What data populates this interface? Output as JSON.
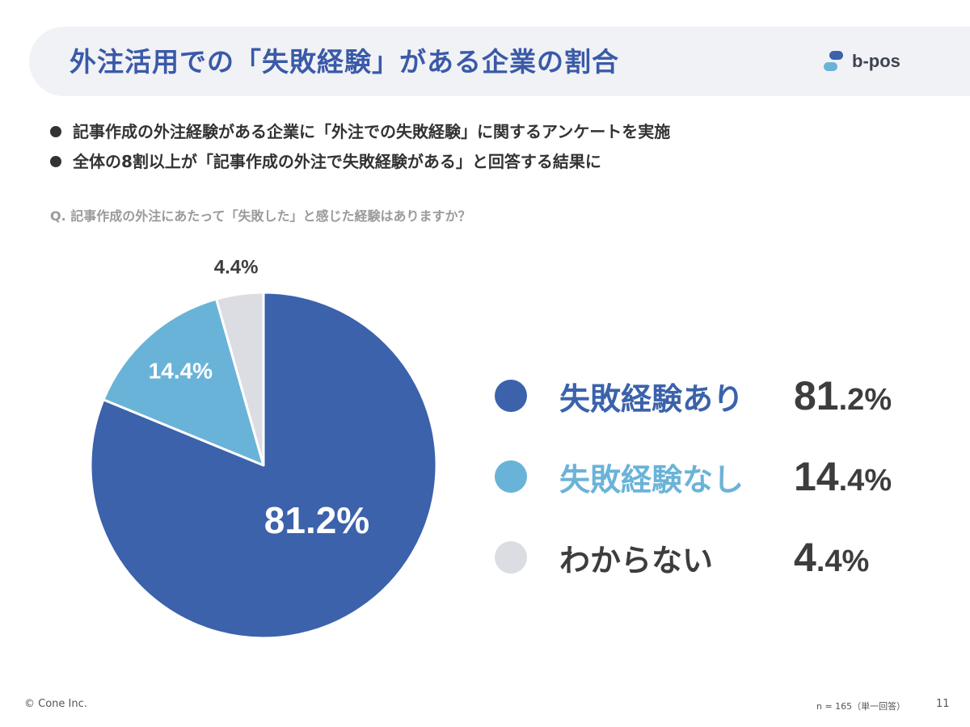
{
  "header": {
    "title": "外注活用での「失敗経験」がある企業の割合",
    "logo_text": "b-pos"
  },
  "bullets": [
    "記事作成の外注経験がある企業に「外注での失敗経験」に関するアンケートを実施",
    "全体の8割以上が「記事作成の外注で失敗経験がある」と回答する結果に"
  ],
  "question": "Q. 記事作成の外注にあたって「失敗した」と感じた経験はありますか？",
  "chart_data": {
    "type": "pie",
    "categories": [
      "失敗経験あり",
      "失敗経験なし",
      "わからない"
    ],
    "values": [
      81.2,
      14.4,
      4.4
    ],
    "value_labels": [
      "81.2%",
      "14.4%",
      "4.4%"
    ],
    "colors": [
      "#3b62ab",
      "#6ab3d8",
      "#dcdde2"
    ],
    "legend_label_colors": [
      "#3b62ab",
      "#6ab3d8",
      "#3d3d3d"
    ],
    "legend": [
      {
        "label": "失敗経験あり",
        "value_int": "81",
        "value_dec": ".2%"
      },
      {
        "label": "失敗経験なし",
        "value_int": "14",
        "value_dec": ".4%"
      },
      {
        "label": "わからない",
        "value_int": "4",
        "value_dec": ".4%"
      }
    ]
  },
  "footer": {
    "copyright": "© Cone Inc.",
    "sample_note": "n = 165（単一回答）",
    "page_number": "11"
  }
}
